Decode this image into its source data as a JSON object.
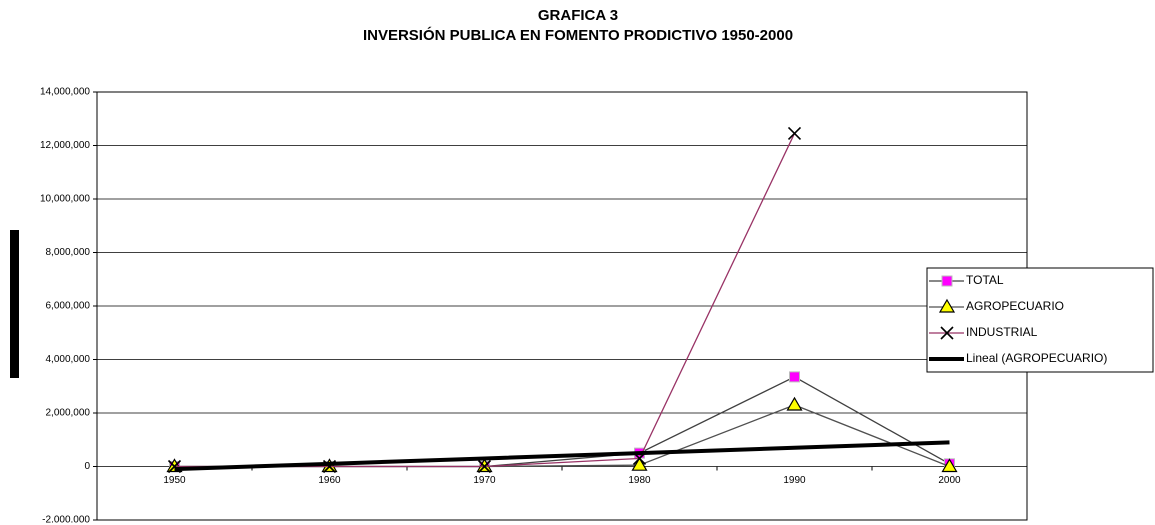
{
  "chart_data": {
    "type": "line",
    "title": "GRAFICA 3",
    "subtitle": "INVERSIÓN PUBLICA EN FOMENTO PRODICTIVO 1950-2000",
    "categories": [
      "1950",
      "1960",
      "1970",
      "1980",
      "1990",
      "2000"
    ],
    "series": [
      {
        "name": "TOTAL",
        "color": "#404040",
        "marker": "square",
        "marker_color": "#ff00ff",
        "values": [
          0,
          0,
          0,
          500000,
          3350000,
          100000
        ]
      },
      {
        "name": "AGROPECUARIO",
        "color": "#505050",
        "marker": "triangle",
        "marker_color": "#ffff00",
        "values": [
          0,
          0,
          0,
          50000,
          2300000,
          0
        ]
      },
      {
        "name": "INDUSTRIAL",
        "color": "#993366",
        "marker": "x",
        "marker_color": "#000000",
        "values": [
          0,
          0,
          0,
          300000,
          12450000,
          null
        ]
      },
      {
        "name": "Lineal (AGROPECUARIO)",
        "color": "#000000",
        "line_width": 4,
        "values": [
          -100000,
          100000,
          300000,
          500000,
          700000,
          900000
        ]
      }
    ],
    "ylim": [
      -2000000,
      14000000
    ],
    "yticks": [
      {
        "value": -2000000,
        "label": "-2.000.000"
      },
      0,
      {
        "value": 2000000,
        "label": "2,000,000"
      },
      {
        "value": 4000000,
        "label": "4,000,000"
      },
      {
        "value": 6000000,
        "label": "6,000,000"
      },
      {
        "value": 8000000,
        "label": "8,000,000"
      },
      {
        "value": 10000000,
        "label": "10,000,000"
      },
      {
        "value": 12000000,
        "label": "12,000,000"
      },
      {
        "value": 14000000,
        "label": "14,000,000"
      }
    ],
    "grid": true,
    "legend": "right"
  }
}
